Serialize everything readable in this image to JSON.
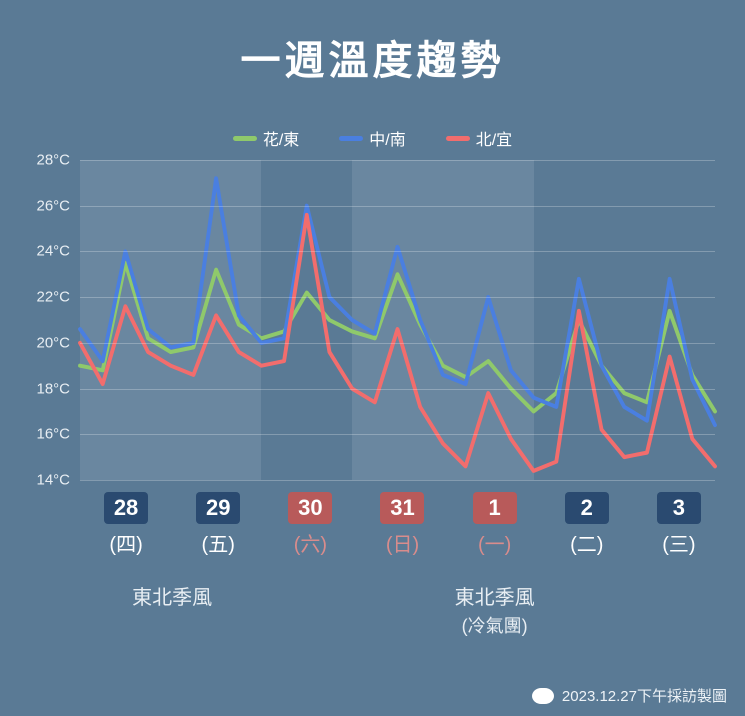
{
  "title": "一週溫度趨勢",
  "background_color": "#5a7a95",
  "legend": {
    "items": [
      {
        "label": "花/東",
        "color": "#8fc96b"
      },
      {
        "label": "中/南",
        "color": "#4a7fe0"
      },
      {
        "label": "北/宜",
        "color": "#f26d6d"
      }
    ]
  },
  "chart": {
    "type": "line",
    "ylim": [
      14,
      28
    ],
    "ytick_step": 2,
    "y_unit": "°C",
    "grid_color": "rgba(255,255,255,0.25)",
    "line_width": 4,
    "shade_color": "rgba(200,215,225,0.15)",
    "shade_ranges": [
      [
        0,
        2
      ],
      [
        3,
        5
      ]
    ],
    "days": [
      {
        "num": "28",
        "paren": "(四)",
        "badge_bg": "#2a4a70",
        "paren_color": "#ffffff"
      },
      {
        "num": "29",
        "paren": "(五)",
        "badge_bg": "#2a4a70",
        "paren_color": "#ffffff"
      },
      {
        "num": "30",
        "paren": "(六)",
        "badge_bg": "#b85a5a",
        "paren_color": "#d98c8c"
      },
      {
        "num": "31",
        "paren": "(日)",
        "badge_bg": "#b85a5a",
        "paren_color": "#d98c8c"
      },
      {
        "num": "1",
        "paren": "(一)",
        "badge_bg": "#b85a5a",
        "paren_color": "#d98c8c"
      },
      {
        "num": "2",
        "paren": "(二)",
        "badge_bg": "#2a4a70",
        "paren_color": "#ffffff"
      },
      {
        "num": "3",
        "paren": "(三)",
        "badge_bg": "#2a4a70",
        "paren_color": "#ffffff"
      }
    ],
    "series": [
      {
        "name": "花/東",
        "color": "#8fc96b",
        "points": [
          19.0,
          18.8,
          23.5,
          20.2,
          19.6,
          19.8,
          23.2,
          20.8,
          20.2,
          20.5,
          22.2,
          21.0,
          20.5,
          20.2,
          23.0,
          20.8,
          19.0,
          18.5,
          19.2,
          18.0,
          17.0,
          17.8,
          21.0,
          19.0,
          17.8,
          17.4,
          21.4,
          18.6,
          17.0
        ]
      },
      {
        "name": "中/南",
        "color": "#4a7fe0",
        "points": [
          20.6,
          19.2,
          24.0,
          20.6,
          19.8,
          20.0,
          27.2,
          21.2,
          20.0,
          20.2,
          26.0,
          22.0,
          21.0,
          20.4,
          24.2,
          21.0,
          18.6,
          18.2,
          22.0,
          18.8,
          17.6,
          17.2,
          22.8,
          19.0,
          17.2,
          16.6,
          22.8,
          18.4,
          16.4
        ]
      },
      {
        "name": "北/宜",
        "color": "#f26d6d",
        "points": [
          20.0,
          18.2,
          21.6,
          19.6,
          19.0,
          18.6,
          21.2,
          19.6,
          19.0,
          19.2,
          25.6,
          19.6,
          18.0,
          17.4,
          20.6,
          17.2,
          15.6,
          14.6,
          17.8,
          15.8,
          14.4,
          14.8,
          21.4,
          16.2,
          15.0,
          15.2,
          19.4,
          15.8,
          14.6
        ]
      }
    ],
    "annotations": [
      {
        "span": 2,
        "main": "東北季風",
        "sub": ""
      },
      {
        "span": 1,
        "main": "",
        "sub": ""
      },
      {
        "span": 3,
        "main": "東北季風",
        "sub": "(冷氣團)"
      },
      {
        "span": 1,
        "main": "",
        "sub": ""
      }
    ]
  },
  "footer": "2023.12.27下午採訪製圖"
}
